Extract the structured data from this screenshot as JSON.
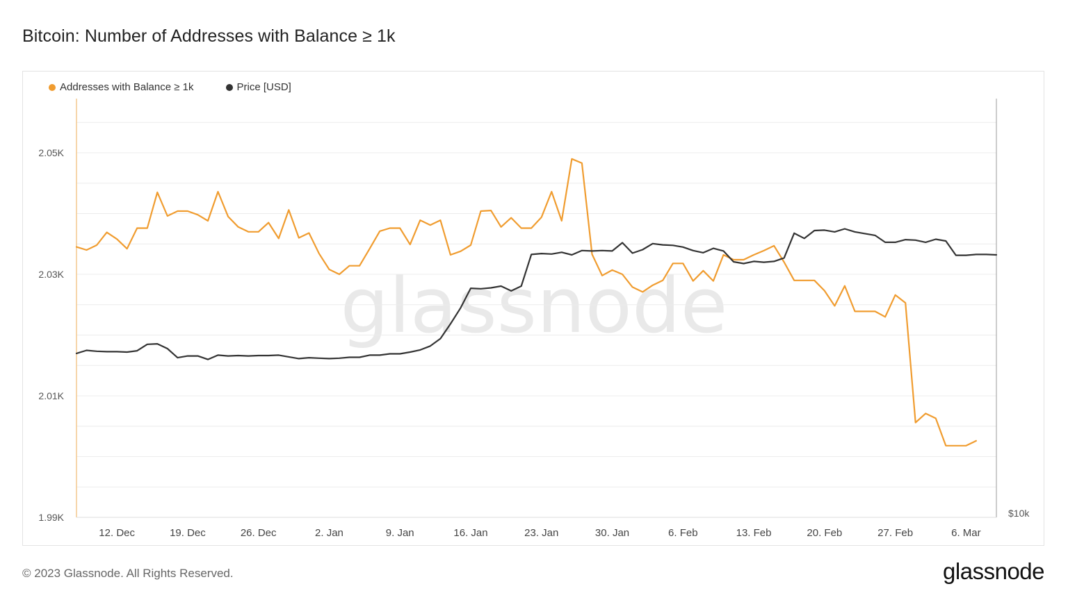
{
  "title": "Bitcoin: Number of Addresses with Balance ≥ 1k",
  "footer": {
    "copyright": "© 2023 Glassnode. All Rights Reserved.",
    "logo": "glassnode"
  },
  "watermark": "glassnode",
  "colors": {
    "addresses": "#f09c2f",
    "price": "#333333",
    "grid": "#ececec",
    "watermark": "#e9e9e9"
  },
  "chart_data": {
    "type": "line",
    "title": "Bitcoin: Number of Addresses with Balance ≥ 1k",
    "y_left": {
      "ticks": [
        "2.05K",
        "2.03K",
        "2.01K",
        "1.99K"
      ],
      "tick_values": [
        2050,
        2030,
        2010,
        1990
      ],
      "ylim": [
        1990,
        2050
      ]
    },
    "y_right": {
      "ticks": [
        "$10k"
      ]
    },
    "x_ticks": [
      "12. Dec",
      "19. Dec",
      "26. Dec",
      "2. Jan",
      "9. Jan",
      "16. Jan",
      "23. Jan",
      "30. Jan",
      "6. Feb",
      "13. Feb",
      "20. Feb",
      "27. Feb",
      "6. Mar"
    ],
    "legend": "top-left",
    "grid": true,
    "series": [
      {
        "name": "Addresses with Balance ≥ 1k",
        "color": "#f09c2f",
        "axis": "left",
        "points": [
          [
            "2022-12-08",
            2034.5
          ],
          [
            "2022-12-09",
            2034.0
          ],
          [
            "2022-12-10",
            2034.8
          ],
          [
            "2022-12-11",
            2036.9
          ],
          [
            "2022-12-12",
            2035.8
          ],
          [
            "2022-12-13",
            2034.2
          ],
          [
            "2022-12-14",
            2037.6
          ],
          [
            "2022-12-15",
            2037.6
          ],
          [
            "2022-12-16",
            2043.5
          ],
          [
            "2022-12-17",
            2039.6
          ],
          [
            "2022-12-18",
            2040.4
          ],
          [
            "2022-12-19",
            2040.4
          ],
          [
            "2022-12-20",
            2039.8
          ],
          [
            "2022-12-21",
            2038.8
          ],
          [
            "2022-12-22",
            2043.6
          ],
          [
            "2022-12-23",
            2039.5
          ],
          [
            "2022-12-24",
            2037.8
          ],
          [
            "2022-12-25",
            2037.0
          ],
          [
            "2022-12-26",
            2037.0
          ],
          [
            "2022-12-27",
            2038.5
          ],
          [
            "2022-12-28",
            2035.9
          ],
          [
            "2022-12-29",
            2040.6
          ],
          [
            "2022-12-30",
            2036.0
          ],
          [
            "2022-12-31",
            2036.8
          ],
          [
            "2023-01-01",
            2033.4
          ],
          [
            "2023-01-02",
            2030.8
          ],
          [
            "2023-01-03",
            2030.0
          ],
          [
            "2023-01-04",
            2031.4
          ],
          [
            "2023-01-05",
            2031.4
          ],
          [
            "2023-01-06",
            2034.2
          ],
          [
            "2023-01-07",
            2037.1
          ],
          [
            "2023-01-08",
            2037.6
          ],
          [
            "2023-01-09",
            2037.6
          ],
          [
            "2023-01-10",
            2034.9
          ],
          [
            "2023-01-11",
            2038.9
          ],
          [
            "2023-01-12",
            2038.1
          ],
          [
            "2023-01-13",
            2038.9
          ],
          [
            "2023-01-14",
            2033.2
          ],
          [
            "2023-01-15",
            2033.8
          ],
          [
            "2023-01-16",
            2034.8
          ],
          [
            "2023-01-17",
            2040.4
          ],
          [
            "2023-01-18",
            2040.5
          ],
          [
            "2023-01-19",
            2037.8
          ],
          [
            "2023-01-20",
            2039.3
          ],
          [
            "2023-01-21",
            2037.6
          ],
          [
            "2023-01-22",
            2037.6
          ],
          [
            "2023-01-23",
            2039.4
          ],
          [
            "2023-01-24",
            2043.6
          ],
          [
            "2023-01-25",
            2038.8
          ],
          [
            "2023-01-26",
            2049.0
          ],
          [
            "2023-01-27",
            2048.3
          ],
          [
            "2023-01-28",
            2033.3
          ],
          [
            "2023-01-29",
            2029.8
          ],
          [
            "2023-01-30",
            2030.7
          ],
          [
            "2023-01-31",
            2030.0
          ],
          [
            "2023-02-01",
            2027.9
          ],
          [
            "2023-02-02",
            2027.1
          ],
          [
            "2023-02-03",
            2028.2
          ],
          [
            "2023-02-04",
            2029.0
          ],
          [
            "2023-02-05",
            2031.8
          ],
          [
            "2023-02-06",
            2031.8
          ],
          [
            "2023-02-07",
            2028.9
          ],
          [
            "2023-02-08",
            2030.6
          ],
          [
            "2023-02-09",
            2028.9
          ],
          [
            "2023-02-10",
            2033.2
          ],
          [
            "2023-02-11",
            2032.4
          ],
          [
            "2023-02-12",
            2032.4
          ],
          [
            "2023-02-13",
            2033.2
          ],
          [
            "2023-02-14",
            2033.9
          ],
          [
            "2023-02-15",
            2034.7
          ],
          [
            "2023-02-16",
            2032.0
          ],
          [
            "2023-02-17",
            2029.0
          ],
          [
            "2023-02-18",
            2029.0
          ],
          [
            "2023-02-19",
            2029.0
          ],
          [
            "2023-02-20",
            2027.3
          ],
          [
            "2023-02-21",
            2024.8
          ],
          [
            "2023-02-22",
            2028.1
          ],
          [
            "2023-02-23",
            2023.9
          ],
          [
            "2023-02-24",
            2023.9
          ],
          [
            "2023-02-25",
            2023.9
          ],
          [
            "2023-02-26",
            2023.0
          ],
          [
            "2023-02-27",
            2026.6
          ],
          [
            "2023-02-28",
            2025.3
          ],
          [
            "2023-03-01",
            2005.6
          ],
          [
            "2023-03-02",
            2007.1
          ],
          [
            "2023-03-03",
            2006.3
          ],
          [
            "2023-03-04",
            2001.8
          ],
          [
            "2023-03-05",
            2001.8
          ],
          [
            "2023-03-06",
            2001.8
          ],
          [
            "2023-03-07",
            2002.6
          ]
        ]
      },
      {
        "name": "Price [USD]",
        "color": "#333333",
        "axis": "right",
        "points": [
          [
            "2022-12-08",
            17050
          ],
          [
            "2022-12-09",
            17120
          ],
          [
            "2022-12-10",
            17100
          ],
          [
            "2022-12-11",
            17090
          ],
          [
            "2022-12-12",
            17090
          ],
          [
            "2022-12-13",
            17080
          ],
          [
            "2022-12-14",
            17110
          ],
          [
            "2022-12-15",
            17260
          ],
          [
            "2022-12-16",
            17270
          ],
          [
            "2022-12-17",
            17160
          ],
          [
            "2022-12-18",
            16950
          ],
          [
            "2022-12-19",
            16990
          ],
          [
            "2022-12-20",
            16990
          ],
          [
            "2022-12-21",
            16910
          ],
          [
            "2022-12-22",
            17010
          ],
          [
            "2022-12-23",
            16990
          ],
          [
            "2022-12-24",
            17000
          ],
          [
            "2022-12-25",
            16990
          ],
          [
            "2022-12-26",
            17000
          ],
          [
            "2022-12-27",
            17000
          ],
          [
            "2022-12-28",
            17010
          ],
          [
            "2022-12-29",
            16970
          ],
          [
            "2022-12-30",
            16930
          ],
          [
            "2022-12-31",
            16950
          ],
          [
            "2023-01-01",
            16940
          ],
          [
            "2023-01-02",
            16930
          ],
          [
            "2023-01-03",
            16940
          ],
          [
            "2023-01-04",
            16960
          ],
          [
            "2023-01-05",
            16960
          ],
          [
            "2023-01-06",
            17010
          ],
          [
            "2023-01-07",
            17010
          ],
          [
            "2023-01-08",
            17040
          ],
          [
            "2023-01-09",
            17040
          ],
          [
            "2023-01-10",
            17080
          ],
          [
            "2023-01-11",
            17130
          ],
          [
            "2023-01-12",
            17220
          ],
          [
            "2023-01-13",
            17390
          ],
          [
            "2023-01-14",
            17730
          ],
          [
            "2023-01-15",
            18100
          ],
          [
            "2023-01-16",
            18550
          ],
          [
            "2023-01-17",
            18540
          ],
          [
            "2023-01-18",
            18560
          ],
          [
            "2023-01-19",
            18600
          ],
          [
            "2023-01-20",
            18490
          ],
          [
            "2023-01-21",
            18600
          ],
          [
            "2023-01-22",
            19330
          ],
          [
            "2023-01-23",
            19350
          ],
          [
            "2023-01-24",
            19340
          ],
          [
            "2023-01-25",
            19380
          ],
          [
            "2023-01-26",
            19320
          ],
          [
            "2023-01-27",
            19420
          ],
          [
            "2023-01-28",
            19410
          ],
          [
            "2023-01-29",
            19420
          ],
          [
            "2023-01-30",
            19410
          ],
          [
            "2023-01-31",
            19600
          ],
          [
            "2023-02-01",
            19360
          ],
          [
            "2023-02-02",
            19440
          ],
          [
            "2023-02-03",
            19580
          ],
          [
            "2023-02-04",
            19550
          ],
          [
            "2023-02-05",
            19540
          ],
          [
            "2023-02-06",
            19500
          ],
          [
            "2023-02-07",
            19420
          ],
          [
            "2023-02-08",
            19370
          ],
          [
            "2023-02-09",
            19470
          ],
          [
            "2023-02-10",
            19410
          ],
          [
            "2023-02-11",
            19160
          ],
          [
            "2023-02-12",
            19120
          ],
          [
            "2023-02-13",
            19170
          ],
          [
            "2023-02-14",
            19150
          ],
          [
            "2023-02-15",
            19170
          ],
          [
            "2023-02-16",
            19250
          ],
          [
            "2023-02-17",
            19820
          ],
          [
            "2023-02-18",
            19700
          ],
          [
            "2023-02-19",
            19880
          ],
          [
            "2023-02-20",
            19890
          ],
          [
            "2023-02-21",
            19850
          ],
          [
            "2023-02-22",
            19920
          ],
          [
            "2023-02-23",
            19850
          ],
          [
            "2023-02-24",
            19810
          ],
          [
            "2023-02-25",
            19770
          ],
          [
            "2023-02-26",
            19610
          ],
          [
            "2023-02-27",
            19610
          ],
          [
            "2023-02-28",
            19670
          ],
          [
            "2023-03-01",
            19660
          ],
          [
            "2023-03-02",
            19610
          ],
          [
            "2023-03-03",
            19680
          ],
          [
            "2023-03-04",
            19640
          ],
          [
            "2023-03-05",
            19310
          ],
          [
            "2023-03-06",
            19310
          ],
          [
            "2023-03-07",
            19330
          ],
          [
            "2023-03-08",
            19330
          ],
          [
            "2023-03-09",
            19320
          ]
        ]
      }
    ]
  }
}
